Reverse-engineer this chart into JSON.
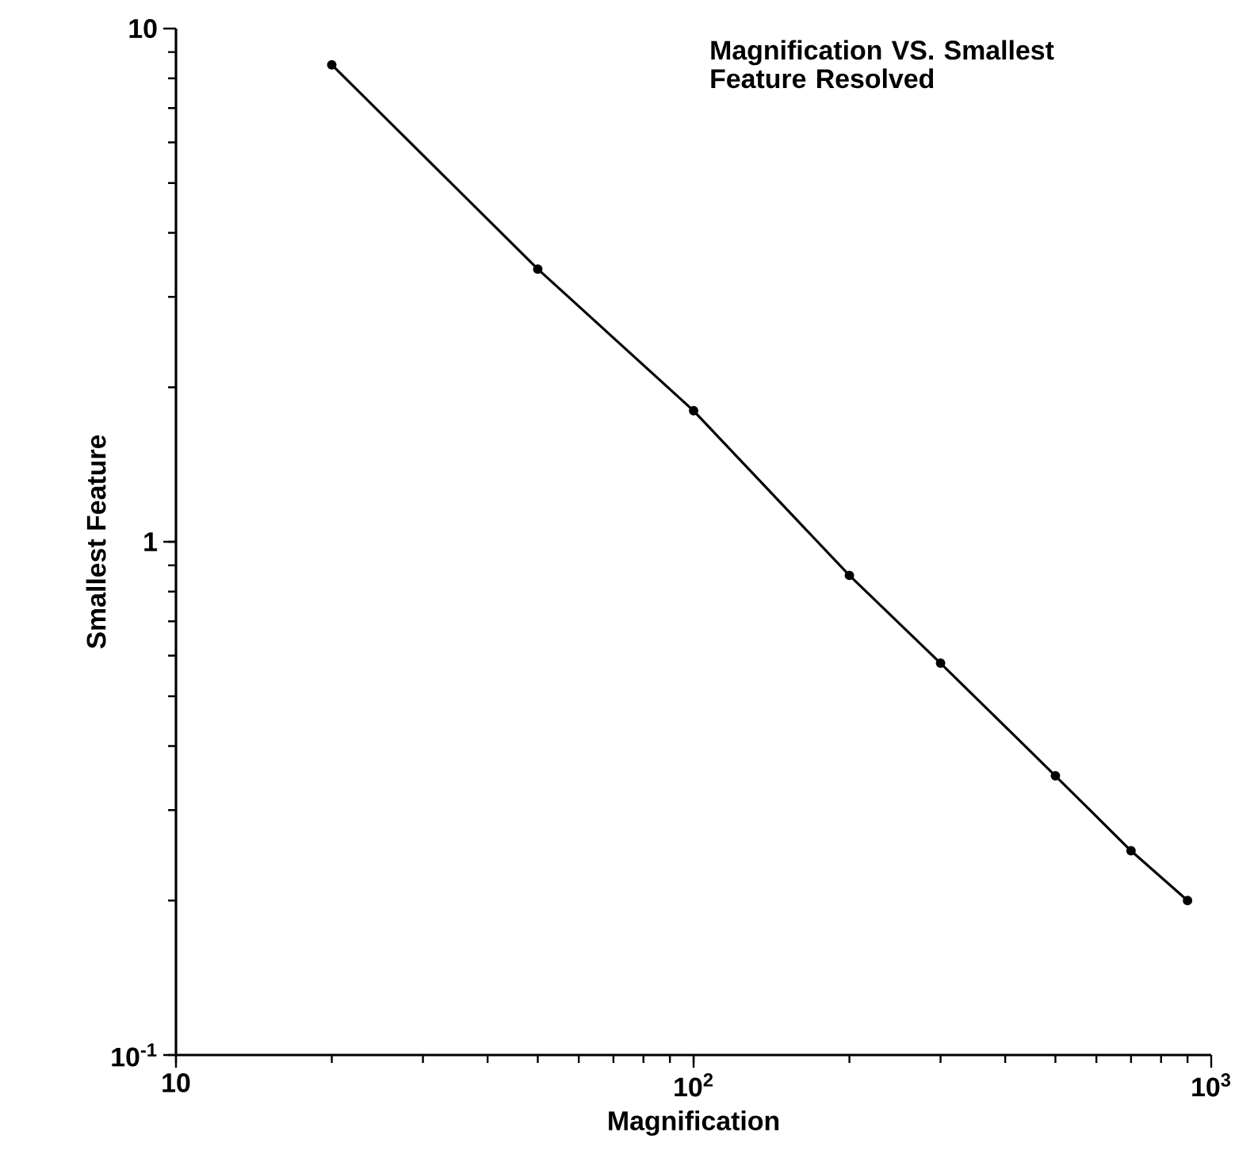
{
  "chart_data": {
    "type": "line",
    "title": "Magnification VS. Smallest Feature Resolved",
    "xlabel": "Magnification",
    "ylabel": "Smallest Feature",
    "x": [
      20,
      50,
      100,
      200,
      300,
      500,
      700,
      900
    ],
    "series": [
      {
        "color": "#000000",
        "values": [
          8.5,
          3.4,
          1.8,
          0.86,
          0.58,
          0.35,
          0.25,
          0.2
        ]
      }
    ],
    "log": "xy",
    "xlim": [
      10,
      1000
    ],
    "ylim": [
      0.1,
      10
    ],
    "xticks": [
      10,
      {
        "value": 100,
        "label": "10$^{2}$"
      },
      {
        "value": 1000,
        "label": "10$^{3}$"
      }
    ],
    "yticks": [
      {
        "value": 0.1,
        "label": "10$^{-1}$"
      },
      1,
      10
    ],
    "marker": "circle",
    "line_style": "solid",
    "grid": false
  }
}
